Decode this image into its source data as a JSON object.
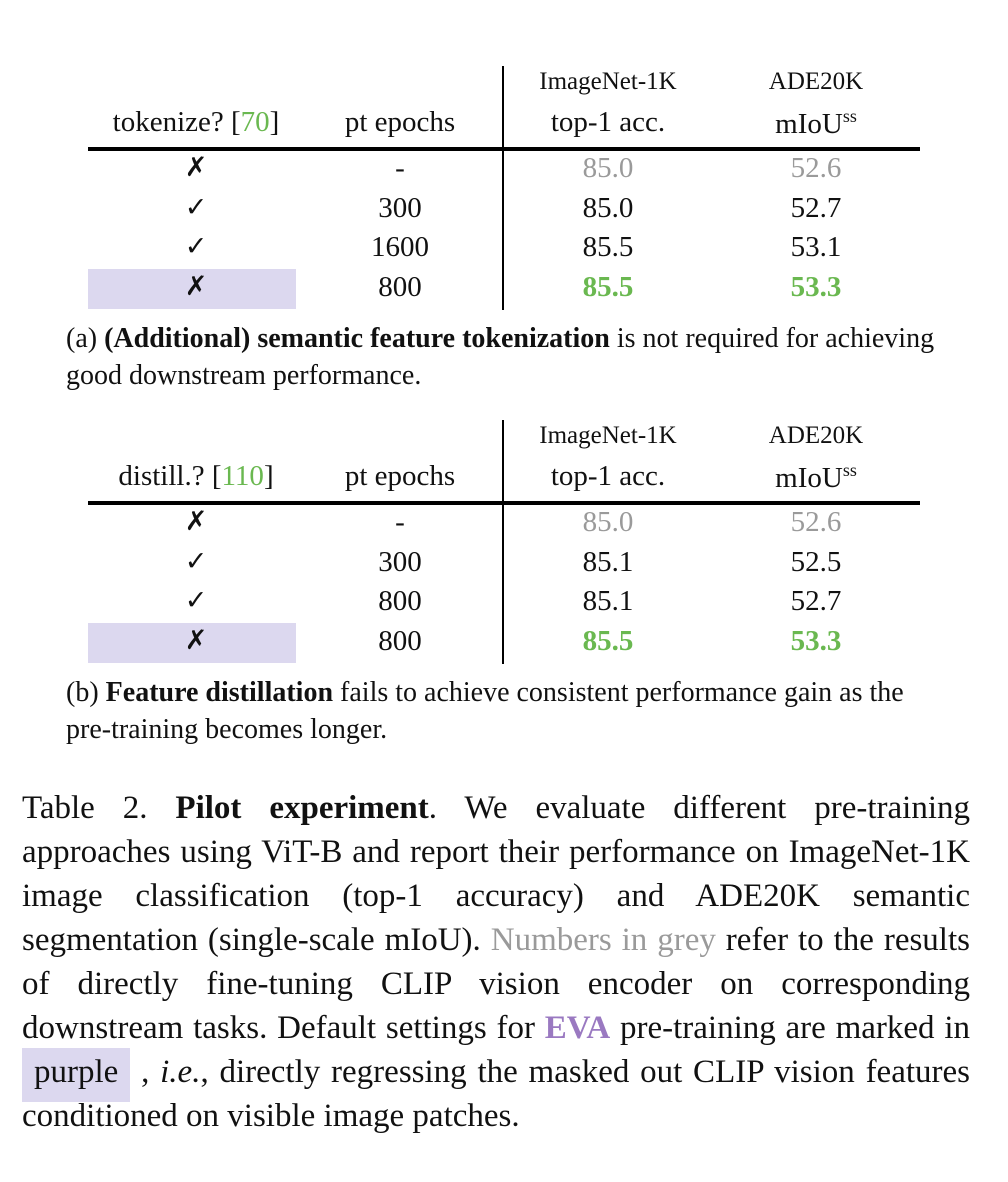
{
  "table_a": {
    "headers": {
      "col1": "tokenize? [",
      "col1_cite": "70",
      "col1_end": "]",
      "col2": "pt epochs",
      "col3_top": "ImageNet-1K",
      "col3_bot": "top-1 acc.",
      "col4_top": "ADE20K",
      "col4_bot": "mIoU",
      "col4_sup": "ss"
    },
    "rows": [
      {
        "mark": "✗",
        "epochs": "-",
        "top1": "85.0",
        "miou": "52.6",
        "style": "grey",
        "highlight": false
      },
      {
        "mark": "✓",
        "epochs": "300",
        "top1": "85.0",
        "miou": "52.7",
        "style": "normal",
        "highlight": false
      },
      {
        "mark": "✓",
        "epochs": "1600",
        "top1": "85.5",
        "miou": "53.1",
        "style": "normal",
        "highlight": false
      },
      {
        "mark": "✗",
        "epochs": "800",
        "top1": "85.5",
        "miou": "53.3",
        "style": "green",
        "highlight": true
      }
    ],
    "caption_label": "(a) ",
    "caption_bold": "(Additional) semantic feature tokenization",
    "caption_rest": " is not required for achieving good downstream performance."
  },
  "table_b": {
    "headers": {
      "col1": "distill.? [",
      "col1_cite": "110",
      "col1_end": "]",
      "col2": "pt epochs",
      "col3_top": "ImageNet-1K",
      "col3_bot": "top-1 acc.",
      "col4_top": "ADE20K",
      "col4_bot": "mIoU",
      "col4_sup": "ss"
    },
    "rows": [
      {
        "mark": "✗",
        "epochs": "-",
        "top1": "85.0",
        "miou": "52.6",
        "style": "grey",
        "highlight": false
      },
      {
        "mark": "✓",
        "epochs": "300",
        "top1": "85.1",
        "miou": "52.5",
        "style": "normal",
        "highlight": false
      },
      {
        "mark": "✓",
        "epochs": "800",
        "top1": "85.1",
        "miou": "52.7",
        "style": "normal",
        "highlight": false
      },
      {
        "mark": "✗",
        "epochs": "800",
        "top1": "85.5",
        "miou": "53.3",
        "style": "green",
        "highlight": true
      }
    ],
    "caption_label": "(b) ",
    "caption_bold": "Feature distillation",
    "caption_rest": " fails to achieve consistent performance gain as the pre-training becomes longer."
  },
  "main_caption": {
    "label": "Table 2.  ",
    "title": "Pilot experiment",
    "part1": ".  We evaluate different pre-training approaches using ViT-B and report their performance on ImageNet-1K image classification (top-1 accuracy) and ADE20K semantic segmentation (single-scale mIoU). ",
    "grey_text": "Numbers in grey",
    "part2": " refer to the results of directly fine-tuning CLIP vision encoder on corresponding downstream tasks.  Default settings for ",
    "eva": "EVA",
    "part3": " pre-training are marked in ",
    "purple_word": "purple",
    "part4": " , ",
    "ie": "i.e.",
    "part5": ", directly regressing the masked out CLIP vision features conditioned on visible image patches."
  },
  "colors": {
    "green": "#6ab850",
    "grey": "#9a9a9a",
    "purple_bg": "#dcd8ef",
    "eva_purple": "#9a79c1"
  }
}
